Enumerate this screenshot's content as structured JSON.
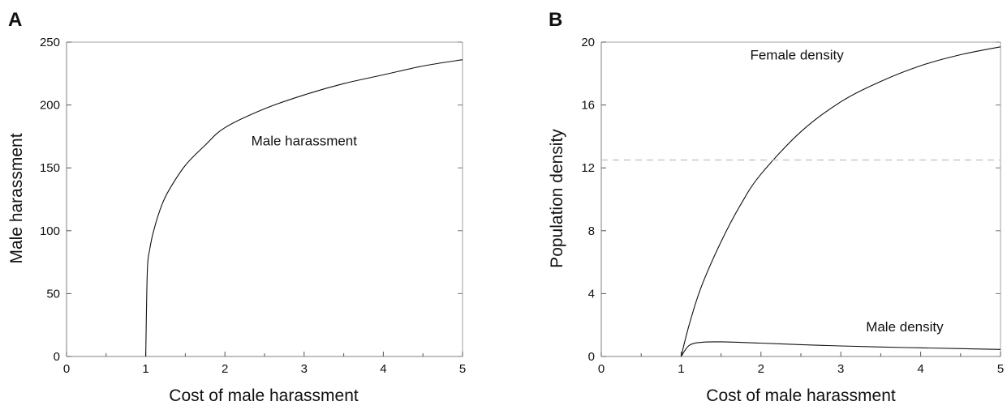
{
  "chart_data": [
    {
      "panel": "A",
      "type": "line",
      "xlabel": "Cost of male harassment",
      "ylabel": "Male harassment",
      "xlim": [
        0,
        5
      ],
      "ylim": [
        0,
        250
      ],
      "x_ticks": [
        0,
        1,
        2,
        3,
        4,
        5
      ],
      "y_ticks": [
        0,
        50,
        100,
        150,
        200,
        250
      ],
      "grid": false,
      "series": [
        {
          "label": "Male harassment",
          "style": "solid",
          "x": [
            1.0,
            1.02,
            1.05,
            1.1,
            1.2,
            1.3,
            1.5,
            1.75,
            2.0,
            2.5,
            3.0,
            3.5,
            4.0,
            4.5,
            5.0
          ],
          "y": [
            0,
            68,
            85,
            100,
            120,
            133,
            152,
            168,
            182,
            197,
            208,
            217,
            224,
            231,
            236
          ]
        }
      ],
      "annotations": [
        {
          "text": "Male harassment",
          "x": 3.0,
          "y": 168
        }
      ]
    },
    {
      "panel": "B",
      "type": "line",
      "xlabel": "Cost of male harassment",
      "ylabel": "Population density",
      "xlim": [
        0,
        5
      ],
      "ylim": [
        0,
        20
      ],
      "x_ticks": [
        0,
        1,
        2,
        3,
        4,
        5
      ],
      "y_ticks": [
        0,
        4,
        8,
        12,
        16,
        20
      ],
      "grid": false,
      "series": [
        {
          "label": "Female density",
          "style": "solid",
          "x": [
            1.0,
            1.1,
            1.25,
            1.5,
            1.75,
            2.0,
            2.5,
            3.0,
            3.5,
            4.0,
            4.5,
            5.0
          ],
          "y": [
            0,
            2.0,
            4.4,
            7.3,
            9.7,
            11.6,
            14.3,
            16.2,
            17.5,
            18.5,
            19.2,
            19.7
          ]
        },
        {
          "label": "Male density",
          "style": "solid",
          "x": [
            1.0,
            1.1,
            1.25,
            1.5,
            2.0,
            2.5,
            3.0,
            3.5,
            4.0,
            4.5,
            5.0
          ],
          "y": [
            0,
            0.7,
            0.9,
            0.93,
            0.85,
            0.75,
            0.67,
            0.6,
            0.55,
            0.5,
            0.45
          ]
        },
        {
          "label": "reference",
          "style": "dashed",
          "color": "#bfbfbf",
          "x": [
            0,
            5
          ],
          "y": [
            12.5,
            12.5
          ]
        }
      ],
      "annotations": [
        {
          "text": "Female density",
          "x": 2.45,
          "y": 18.9
        },
        {
          "text": "Male density",
          "x": 3.8,
          "y": 1.6
        }
      ]
    }
  ]
}
